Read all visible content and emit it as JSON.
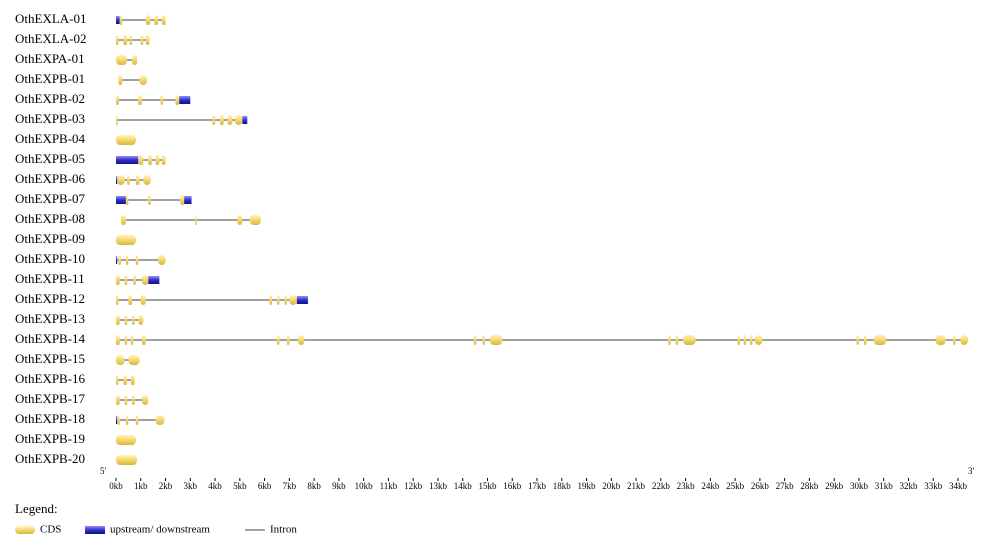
{
  "chart_data": {
    "type": "gene-structure",
    "cds_color": "#f5d76e",
    "utr_color": "#3030cc",
    "intron_color": "#808080",
    "five_prime": "5'",
    "three_prime": "3'",
    "xlim": [
      0,
      34
    ],
    "xticks": [
      {
        "value": 0,
        "label": "0kb"
      },
      {
        "value": 1,
        "label": "1kb"
      },
      {
        "value": 2,
        "label": "2kb"
      },
      {
        "value": 3,
        "label": "3kb"
      },
      {
        "value": 4,
        "label": "4kb"
      },
      {
        "value": 5,
        "label": "5kb"
      },
      {
        "value": 6,
        "label": "6kb"
      },
      {
        "value": 7,
        "label": "7kb"
      },
      {
        "value": 8,
        "label": "8kb"
      },
      {
        "value": 9,
        "label": "9kb"
      },
      {
        "value": 10,
        "label": "10kb"
      },
      {
        "value": 11,
        "label": "11kb"
      },
      {
        "value": 12,
        "label": "12kb"
      },
      {
        "value": 13,
        "label": "13kb"
      },
      {
        "value": 14,
        "label": "14kb"
      },
      {
        "value": 15,
        "label": "15kb"
      },
      {
        "value": 16,
        "label": "16kb"
      },
      {
        "value": 17,
        "label": "17kb"
      },
      {
        "value": 18,
        "label": "18kb"
      },
      {
        "value": 19,
        "label": "19kb"
      },
      {
        "value": 20,
        "label": "20kb"
      },
      {
        "value": 21,
        "label": "21kb"
      },
      {
        "value": 22,
        "label": "22kb"
      },
      {
        "value": 23,
        "label": "23kb"
      },
      {
        "value": 24,
        "label": "24kb"
      },
      {
        "value": 25,
        "label": "25kb"
      },
      {
        "value": 26,
        "label": "26kb"
      },
      {
        "value": 27,
        "label": "27kb"
      },
      {
        "value": 28,
        "label": "28kb"
      },
      {
        "value": 29,
        "label": "29kb"
      },
      {
        "value": 30,
        "label": "30kb"
      },
      {
        "value": 31,
        "label": "31kb"
      },
      {
        "value": 32,
        "label": "32kb"
      },
      {
        "value": 33,
        "label": "33kb"
      },
      {
        "value": 34,
        "label": "34kb"
      }
    ],
    "legend": {
      "title": "Legend:",
      "items": [
        "CDS",
        "upstream/ downstream",
        "Intron"
      ]
    },
    "genes": [
      {
        "name": "OthEXLA-01",
        "utr": [
          [
            0,
            0.15
          ]
        ],
        "cds": [
          [
            0.15,
            0.25
          ],
          [
            1.2,
            1.4
          ],
          [
            1.55,
            1.7
          ],
          [
            1.85,
            2.0
          ]
        ]
      },
      {
        "name": "OthEXLA-02",
        "utr": [],
        "cds": [
          [
            0,
            0.1
          ],
          [
            0.3,
            0.45
          ],
          [
            0.55,
            0.65
          ],
          [
            1.0,
            1.1
          ],
          [
            1.2,
            1.35
          ]
        ]
      },
      {
        "name": "OthEXPA-01",
        "utr": [],
        "cds": [
          [
            0,
            0.45
          ],
          [
            0.65,
            0.85
          ]
        ]
      },
      {
        "name": "OthEXPB-01",
        "utr": [],
        "cds": [
          [
            0.1,
            0.25
          ],
          [
            0.95,
            1.25
          ]
        ]
      },
      {
        "name": "OthEXPB-02",
        "utr": [
          [
            2.55,
            3.0
          ]
        ],
        "cds": [
          [
            0,
            0.12
          ],
          [
            0.9,
            1.05
          ],
          [
            1.8,
            1.9
          ],
          [
            2.4,
            2.55
          ]
        ]
      },
      {
        "name": "OthEXPB-03",
        "utr": [
          [
            5.1,
            5.3
          ]
        ],
        "cds": [
          [
            0,
            0.05
          ],
          [
            3.9,
            4.0
          ],
          [
            4.2,
            4.35
          ],
          [
            4.5,
            4.7
          ],
          [
            4.8,
            5.1
          ]
        ]
      },
      {
        "name": "OthEXPB-04",
        "utr": [],
        "cds": [
          [
            0,
            0.8
          ]
        ]
      },
      {
        "name": "OthEXPB-05",
        "utr": [
          [
            0,
            0.9
          ]
        ],
        "cds": [
          [
            0.9,
            1.1
          ],
          [
            1.3,
            1.45
          ],
          [
            1.6,
            1.75
          ],
          [
            1.85,
            2.0
          ]
        ]
      },
      {
        "name": "OthEXPB-06",
        "utr": [
          [
            0,
            0.05
          ]
        ],
        "cds": [
          [
            0.05,
            0.35
          ],
          [
            0.45,
            0.55
          ],
          [
            0.8,
            0.95
          ],
          [
            1.1,
            1.4
          ]
        ]
      },
      {
        "name": "OthEXPB-07",
        "utr": [
          [
            0,
            0.4
          ],
          [
            2.75,
            3.05
          ]
        ],
        "cds": [
          [
            0.4,
            0.5
          ],
          [
            1.3,
            1.4
          ],
          [
            2.6,
            2.75
          ]
        ]
      },
      {
        "name": "OthEXPB-08",
        "utr": [],
        "cds": [
          [
            0.2,
            0.4
          ],
          [
            3.2,
            3.25
          ],
          [
            4.9,
            5.1
          ],
          [
            5.4,
            5.85
          ]
        ]
      },
      {
        "name": "OthEXPB-09",
        "utr": [],
        "cds": [
          [
            0,
            0.8
          ]
        ]
      },
      {
        "name": "OthEXPB-10",
        "utr": [
          [
            0,
            0.05
          ]
        ],
        "cds": [
          [
            0.1,
            0.2
          ],
          [
            0.4,
            0.5
          ],
          [
            0.8,
            0.9
          ],
          [
            1.7,
            2.0
          ]
        ]
      },
      {
        "name": "OthEXPB-11",
        "utr": [
          [
            1.3,
            1.75
          ]
        ],
        "cds": [
          [
            0,
            0.15
          ],
          [
            0.35,
            0.45
          ],
          [
            0.7,
            0.8
          ],
          [
            1.05,
            1.3
          ]
        ]
      },
      {
        "name": "OthEXPB-12",
        "utr": [
          [
            7.3,
            7.75
          ]
        ],
        "cds": [
          [
            0,
            0.1
          ],
          [
            0.5,
            0.65
          ],
          [
            1.0,
            1.2
          ],
          [
            6.2,
            6.3
          ],
          [
            6.5,
            6.6
          ],
          [
            6.8,
            6.9
          ],
          [
            7.0,
            7.3
          ]
        ]
      },
      {
        "name": "OthEXPB-13",
        "utr": [],
        "cds": [
          [
            0,
            0.15
          ],
          [
            0.35,
            0.45
          ],
          [
            0.65,
            0.75
          ],
          [
            0.9,
            1.1
          ]
        ]
      },
      {
        "name": "OthEXPB-14",
        "utr": [],
        "cds": [
          [
            0,
            0.15
          ],
          [
            0.35,
            0.45
          ],
          [
            0.6,
            0.7
          ],
          [
            1.05,
            1.2
          ],
          [
            6.5,
            6.6
          ],
          [
            6.9,
            7.0
          ],
          [
            7.35,
            7.6
          ],
          [
            14.45,
            14.55
          ],
          [
            14.8,
            14.9
          ],
          [
            15.1,
            15.6
          ],
          [
            22.3,
            22.4
          ],
          [
            22.6,
            22.7
          ],
          [
            22.9,
            23.4
          ],
          [
            25.1,
            25.2
          ],
          [
            25.35,
            25.45
          ],
          [
            25.6,
            25.7
          ],
          [
            25.8,
            26.1
          ],
          [
            29.9,
            30.0
          ],
          [
            30.2,
            30.3
          ],
          [
            30.6,
            31.1
          ],
          [
            33.1,
            33.5
          ],
          [
            33.8,
            33.9
          ],
          [
            34.1,
            34.4
          ]
        ]
      },
      {
        "name": "OthEXPB-15",
        "utr": [],
        "cds": [
          [
            0,
            0.35
          ],
          [
            0.5,
            0.95
          ]
        ]
      },
      {
        "name": "OthEXPB-16",
        "utr": [],
        "cds": [
          [
            0,
            0.1
          ],
          [
            0.3,
            0.45
          ],
          [
            0.6,
            0.75
          ]
        ]
      },
      {
        "name": "OthEXPB-17",
        "utr": [],
        "cds": [
          [
            0,
            0.15
          ],
          [
            0.35,
            0.45
          ],
          [
            0.65,
            0.75
          ],
          [
            1.05,
            1.3
          ]
        ]
      },
      {
        "name": "OthEXPB-18",
        "utr": [
          [
            0,
            0.05
          ]
        ],
        "cds": [
          [
            0.05,
            0.15
          ],
          [
            0.4,
            0.5
          ],
          [
            0.8,
            0.9
          ],
          [
            1.6,
            1.95
          ]
        ]
      },
      {
        "name": "OthEXPB-19",
        "utr": [],
        "cds": [
          [
            0,
            0.8
          ]
        ]
      },
      {
        "name": "OthEXPB-20",
        "utr": [],
        "cds": [
          [
            0,
            0.85
          ]
        ]
      }
    ]
  }
}
